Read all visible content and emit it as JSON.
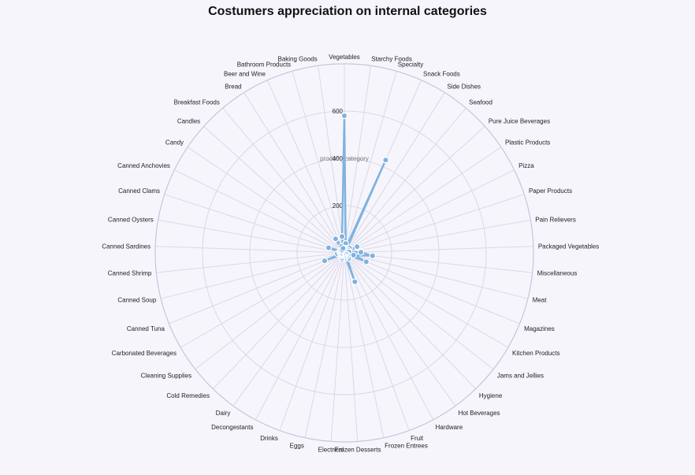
{
  "chart_data": {
    "type": "line",
    "subtype": "radar",
    "title": "Costumers appreciation on internal categories",
    "radial_axis_name": "product_category",
    "rlim": [
      0,
      800
    ],
    "ticks": [
      0,
      200,
      400,
      600
    ],
    "grid": true,
    "colors": {
      "line": "#7fb2e0",
      "point": "#7fb2e0",
      "grid": "#d8d8e6",
      "outer": "#c4c6dc",
      "background": "#f7f5fc"
    },
    "categories": [
      "Vegetables",
      "Starchy Foods",
      "Specialty",
      "Snack Foods",
      "Side Dishes",
      "Seafood",
      "Pure Juice Beverages",
      "Plastic Products",
      "Pizza",
      "Paper Products",
      "Pain Relievers",
      "Packaged Vegetables",
      "Miscellaneous",
      "Meat",
      "Magazines",
      "Kitchen Products",
      "Jams and Jellies",
      "Hygiene",
      "Hot Beverages",
      "Hardware",
      "Fruit",
      "Frozen Entrees",
      "Frozen Desserts",
      "Electrical",
      "Eggs",
      "Drinks",
      "Decongestants",
      "Dairy",
      "Cold Remedies",
      "Cleaning Supplies",
      "Carbonated Beverages",
      "Canned Tuna",
      "Canned Soup",
      "Canned Shrimp",
      "Canned Sardines",
      "Canned Oysters",
      "Canned Clams",
      "Canned Anchovies",
      "Candy",
      "Candles",
      "Breakfast Foods",
      "Bread",
      "Beer and Wine",
      "Bathroom Products",
      "Baking Goods"
    ],
    "series": [
      {
        "values": [
          580,
          40,
          20,
          430,
          15,
          25,
          30,
          20,
          60,
          15,
          20,
          70,
          120,
          40,
          100,
          15,
          20,
          10,
          30,
          20,
          130,
          15,
          20,
          25,
          15,
          30,
          25,
          10,
          20,
          15,
          15,
          90,
          15,
          30,
          20,
          15,
          70,
          20,
          20,
          15,
          15,
          70,
          30,
          20,
          70
        ]
      }
    ]
  }
}
